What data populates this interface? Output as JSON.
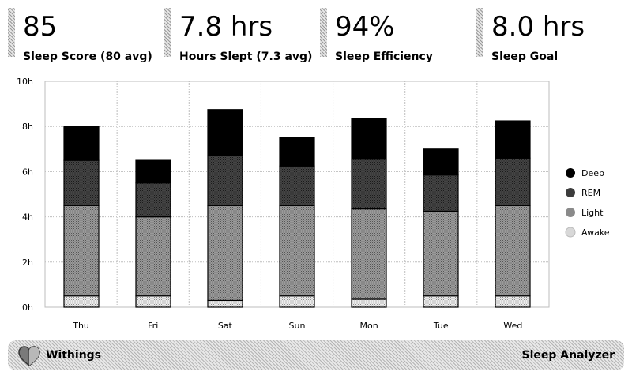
{
  "stats": [
    {
      "value": "85",
      "label": "Sleep Score (80 avg)"
    },
    {
      "value": "7.8 hrs",
      "label": "Hours Slept (7.3 avg)"
    },
    {
      "value": "94%",
      "label": "Sleep Efficiency"
    },
    {
      "value": "8.0 hrs",
      "label": "Sleep Goal"
    }
  ],
  "footer": {
    "brand": "Withings",
    "product": "Sleep Analyzer",
    "logo_icon": "heart-icon"
  },
  "colors": {
    "deep": "#000000",
    "rem": "#3c3c3c",
    "light": "#8a8a8a",
    "awake": "#d8d8d8"
  },
  "chart_data": {
    "type": "bar",
    "stacked": true,
    "categories": [
      "Thu",
      "Fri",
      "Sat",
      "Sun",
      "Mon",
      "Tue",
      "Wed"
    ],
    "series": [
      {
        "name": "Awake",
        "values": [
          0.5,
          0.5,
          0.3,
          0.5,
          0.35,
          0.5,
          0.5
        ]
      },
      {
        "name": "Light",
        "values": [
          4.0,
          3.5,
          4.2,
          4.0,
          4.0,
          3.75,
          4.0
        ]
      },
      {
        "name": "REM",
        "values": [
          2.0,
          1.5,
          2.2,
          1.75,
          2.2,
          1.6,
          2.1
        ]
      },
      {
        "name": "Deep",
        "values": [
          1.5,
          1.0,
          2.05,
          1.25,
          1.8,
          1.15,
          1.65
        ]
      }
    ],
    "ylim": [
      0,
      10
    ],
    "yticks": [
      "0h",
      "2h",
      "4h",
      "6h",
      "8h",
      "10h"
    ],
    "legend": [
      "Deep",
      "REM",
      "Light",
      "Awake"
    ],
    "legend_position": "right",
    "grid": true
  }
}
